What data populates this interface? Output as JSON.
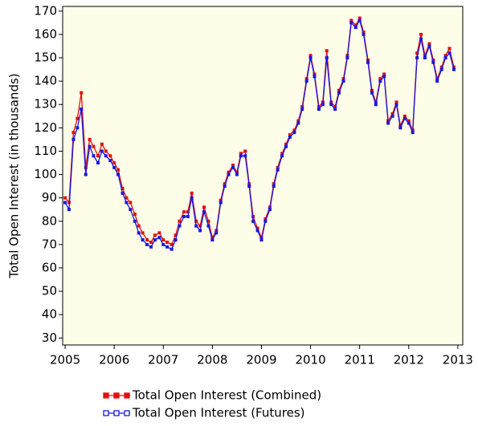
{
  "chart_data": {
    "type": "line",
    "y_label": "Total Open Interest (in thousands)",
    "x": [
      2005.0,
      2005.08,
      2005.17,
      2005.25,
      2005.33,
      2005.42,
      2005.5,
      2005.58,
      2005.67,
      2005.75,
      2005.83,
      2005.92,
      2006.0,
      2006.08,
      2006.17,
      2006.25,
      2006.33,
      2006.42,
      2006.5,
      2006.58,
      2006.67,
      2006.75,
      2006.83,
      2006.92,
      2007.0,
      2007.08,
      2007.17,
      2007.25,
      2007.33,
      2007.42,
      2007.5,
      2007.58,
      2007.67,
      2007.75,
      2007.83,
      2007.92,
      2008.0,
      2008.08,
      2008.17,
      2008.25,
      2008.33,
      2008.42,
      2008.5,
      2008.58,
      2008.67,
      2008.75,
      2008.83,
      2008.92,
      2009.0,
      2009.08,
      2009.17,
      2009.25,
      2009.33,
      2009.42,
      2009.5,
      2009.58,
      2009.67,
      2009.75,
      2009.83,
      2009.92,
      2010.0,
      2010.08,
      2010.17,
      2010.25,
      2010.33,
      2010.42,
      2010.5,
      2010.58,
      2010.67,
      2010.75,
      2010.83,
      2010.92,
      2011.0,
      2011.08,
      2011.17,
      2011.25,
      2011.33,
      2011.42,
      2011.5,
      2011.58,
      2011.67,
      2011.75,
      2011.83,
      2011.92,
      2012.0,
      2012.08,
      2012.17,
      2012.25,
      2012.33,
      2012.42,
      2012.5,
      2012.58,
      2012.67,
      2012.75,
      2012.83,
      2012.92
    ],
    "series": [
      {
        "name": "Total Open Interest (Combined)",
        "color": "#e01010",
        "values": [
          90,
          88,
          118,
          124,
          135,
          103,
          115,
          112,
          108,
          113,
          110,
          108,
          105,
          102,
          94,
          90,
          88,
          83,
          78,
          75,
          72,
          71,
          74,
          75,
          72,
          71,
          70,
          74,
          80,
          84,
          84,
          92,
          80,
          78,
          86,
          80,
          73,
          76,
          89,
          96,
          101,
          104,
          101,
          109,
          110,
          96,
          82,
          77,
          73,
          81,
          86,
          96,
          103,
          109,
          113,
          117,
          119,
          123,
          129,
          141,
          151,
          143,
          129,
          131,
          153,
          131,
          129,
          136,
          141,
          151,
          166,
          164,
          167,
          161,
          149,
          136,
          131,
          141,
          143,
          123,
          126,
          131,
          121,
          125,
          123,
          119,
          152,
          160,
          151,
          156,
          149,
          141,
          146,
          151,
          154,
          146
        ]
      },
      {
        "name": "Total Open Interest (Futures)",
        "color": "#1818e0",
        "values": [
          88,
          85,
          115,
          120,
          128,
          100,
          112,
          108,
          105,
          110,
          108,
          106,
          103,
          100,
          92,
          88,
          85,
          80,
          75,
          72,
          70,
          69,
          72,
          73,
          70,
          69,
          68,
          72,
          78,
          82,
          82,
          90,
          78,
          76,
          84,
          78,
          72,
          75,
          88,
          95,
          100,
          103,
          100,
          108,
          108,
          95,
          80,
          76,
          72,
          80,
          85,
          95,
          102,
          108,
          112,
          116,
          118,
          122,
          128,
          140,
          150,
          142,
          128,
          130,
          150,
          130,
          128,
          135,
          140,
          150,
          165,
          163,
          166,
          160,
          148,
          135,
          130,
          140,
          142,
          122,
          125,
          130,
          120,
          124,
          122,
          118,
          150,
          158,
          150,
          155,
          148,
          140,
          145,
          150,
          152,
          145
        ]
      }
    ],
    "xlim": [
      2004.95,
      2013.1
    ],
    "xticks": [
      2005,
      2006,
      2007,
      2008,
      2009,
      2010,
      2011,
      2012,
      2013
    ],
    "ylim": [
      27,
      172
    ],
    "yticks": [
      30,
      40,
      50,
      60,
      70,
      80,
      90,
      100,
      110,
      120,
      130,
      140,
      150,
      160,
      170
    ]
  }
}
